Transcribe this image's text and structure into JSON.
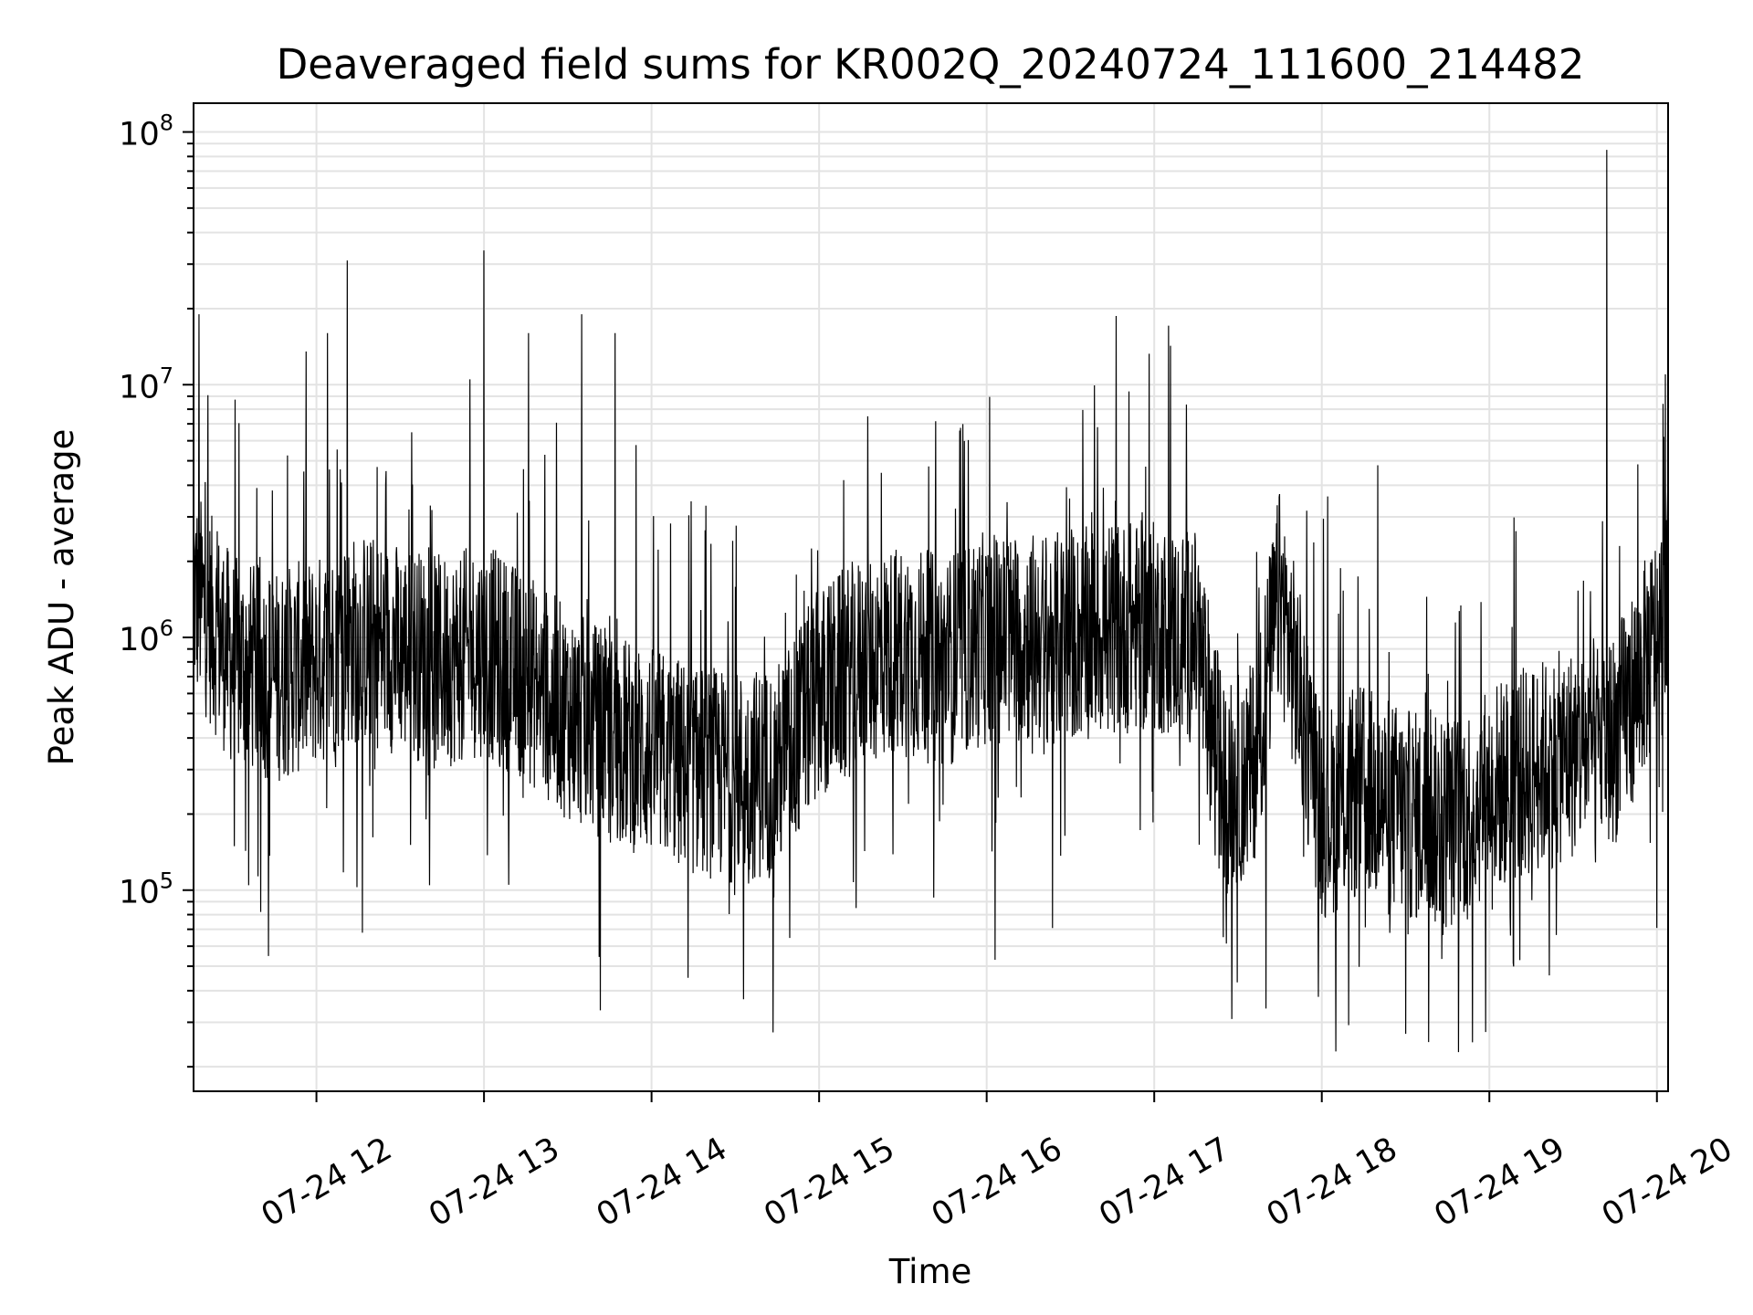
{
  "chart_data": {
    "type": "line",
    "title": "Deaveraged field sums for KR002Q_20240724_111600_214482",
    "xlabel": "Time",
    "ylabel": "Peak ADU - average",
    "yscale": "log",
    "ylim": [
      16000,
      130000000
    ],
    "xlim": [
      "2024-07-24 11:16",
      "2024-07-24 20:04"
    ],
    "grid": true,
    "line_color": "#000000",
    "x_ticks": [
      {
        "value": "2024-07-24 12:00",
        "label": "07-24 12"
      },
      {
        "value": "2024-07-24 13:00",
        "label": "07-24 13"
      },
      {
        "value": "2024-07-24 14:00",
        "label": "07-24 14"
      },
      {
        "value": "2024-07-24 15:00",
        "label": "07-24 15"
      },
      {
        "value": "2024-07-24 16:00",
        "label": "07-24 16"
      },
      {
        "value": "2024-07-24 17:00",
        "label": "07-24 17"
      },
      {
        "value": "2024-07-24 18:00",
        "label": "07-24 18"
      },
      {
        "value": "2024-07-24 19:00",
        "label": "07-24 19"
      },
      {
        "value": "2024-07-24 20:00",
        "label": "07-24 20"
      }
    ],
    "y_ticks": [
      {
        "value": 100000,
        "base": "10",
        "exp": "5"
      },
      {
        "value": 1000000,
        "base": "10",
        "exp": "6"
      },
      {
        "value": 10000000,
        "base": "10",
        "exp": "7"
      },
      {
        "value": 100000000,
        "base": "10",
        "exp": "8"
      }
    ],
    "series": [
      {
        "x": [
          "2024-07-24 11:16",
          "2024-07-24 11:20",
          "2024-07-24 11:30",
          "2024-07-24 11:45",
          "2024-07-24 12:00",
          "2024-07-24 12:15",
          "2024-07-24 12:30",
          "2024-07-24 12:45",
          "2024-07-24 13:00",
          "2024-07-24 13:15",
          "2024-07-24 13:30",
          "2024-07-24 13:45",
          "2024-07-24 14:00",
          "2024-07-24 14:15",
          "2024-07-24 14:30",
          "2024-07-24 14:45",
          "2024-07-24 15:00",
          "2024-07-24 15:15",
          "2024-07-24 15:30",
          "2024-07-24 15:45",
          "2024-07-24 16:00",
          "2024-07-24 16:15",
          "2024-07-24 16:30",
          "2024-07-24 16:45",
          "2024-07-24 17:00",
          "2024-07-24 17:15",
          "2024-07-24 17:25",
          "2024-07-24 17:35",
          "2024-07-24 17:45",
          "2024-07-24 18:00",
          "2024-07-24 18:15",
          "2024-07-24 18:30",
          "2024-07-24 18:45",
          "2024-07-24 19:00",
          "2024-07-24 19:15",
          "2024-07-24 19:30",
          "2024-07-24 19:45",
          "2024-07-24 20:00",
          "2024-07-24 20:04"
        ],
        "values": [
          1500000,
          1300000,
          800000,
          700000,
          800000,
          1000000,
          900000,
          800000,
          900000,
          700000,
          500000,
          400000,
          350000,
          300000,
          280000,
          300000,
          600000,
          800000,
          900000,
          800000,
          1000000,
          1000000,
          1000000,
          1100000,
          1100000,
          1000000,
          250000,
          300000,
          1500000,
          200000,
          250000,
          200000,
          180000,
          250000,
          300000,
          350000,
          400000,
          1000000,
          1200000
        ],
        "spikes": [
          [
            "2024-07-24 11:18",
            19000000
          ],
          [
            "2024-07-24 11:40",
            82000
          ],
          [
            "2024-07-24 12:04",
            16000000
          ],
          [
            "2024-07-24 12:11",
            31000000
          ],
          [
            "2024-07-24 12:55",
            10500000
          ],
          [
            "2024-07-24 13:00",
            34000000
          ],
          [
            "2024-07-24 13:16",
            16000000
          ],
          [
            "2024-07-24 13:35",
            19000000
          ],
          [
            "2024-07-24 13:47",
            16000000
          ],
          [
            "2024-07-24 14:13",
            45000
          ],
          [
            "2024-07-24 14:33",
            37000
          ],
          [
            "2024-07-24 16:03",
            53000
          ],
          [
            "2024-07-24 17:40",
            34000
          ],
          [
            "2024-07-24 18:05",
            23000
          ],
          [
            "2024-07-24 18:20",
            4800000
          ],
          [
            "2024-07-24 18:30",
            27000
          ],
          [
            "2024-07-24 18:54",
            25000
          ],
          [
            "2024-07-24 19:42",
            85000000
          ],
          [
            "2024-07-24 20:03",
            11000000
          ]
        ]
      }
    ]
  }
}
